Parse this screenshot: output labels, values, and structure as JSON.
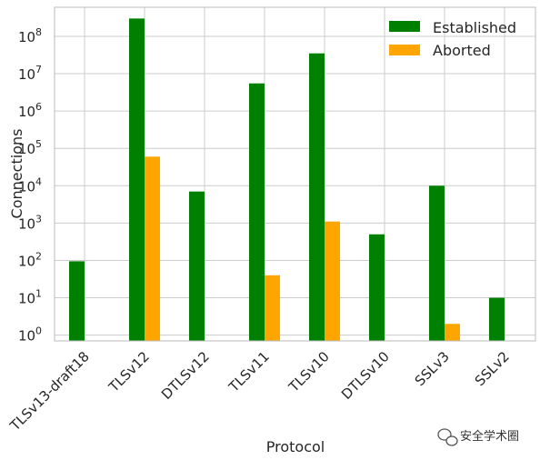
{
  "chart_data": {
    "type": "bar",
    "scale": "log",
    "xlabel": "Protocol",
    "ylabel": "Connections",
    "categories": [
      "TLSv13-draft18",
      "TLSv12",
      "DTLSv12",
      "TLSv11",
      "TLSv10",
      "DTLSv10",
      "SSLv3",
      "SSLv2"
    ],
    "series": [
      {
        "name": "Established",
        "color": "#008000",
        "values": [
          95,
          300000000,
          7000,
          5500000,
          35000000,
          500,
          10000,
          10
        ]
      },
      {
        "name": "Aborted",
        "color": "#FFA500",
        "values": [
          null,
          60000,
          null,
          40,
          1100,
          null,
          2,
          null
        ]
      }
    ],
    "ylim": [
      0.7,
      600000000
    ],
    "y_ticks": [
      {
        "value": 1,
        "base": "10",
        "exp": "0"
      },
      {
        "value": 10,
        "base": "10",
        "exp": "1"
      },
      {
        "value": 100,
        "base": "10",
        "exp": "2"
      },
      {
        "value": 1000,
        "base": "10",
        "exp": "3"
      },
      {
        "value": 10000,
        "base": "10",
        "exp": "4"
      },
      {
        "value": 100000,
        "base": "10",
        "exp": "5"
      },
      {
        "value": 1000000,
        "base": "10",
        "exp": "6"
      },
      {
        "value": 10000000,
        "base": "10",
        "exp": "7"
      },
      {
        "value": 100000000,
        "base": "10",
        "exp": "8"
      }
    ],
    "grid": true,
    "legend_position": "top-right"
  },
  "watermark": {
    "text": "安全学术圈",
    "icon": "wechat-icon"
  }
}
